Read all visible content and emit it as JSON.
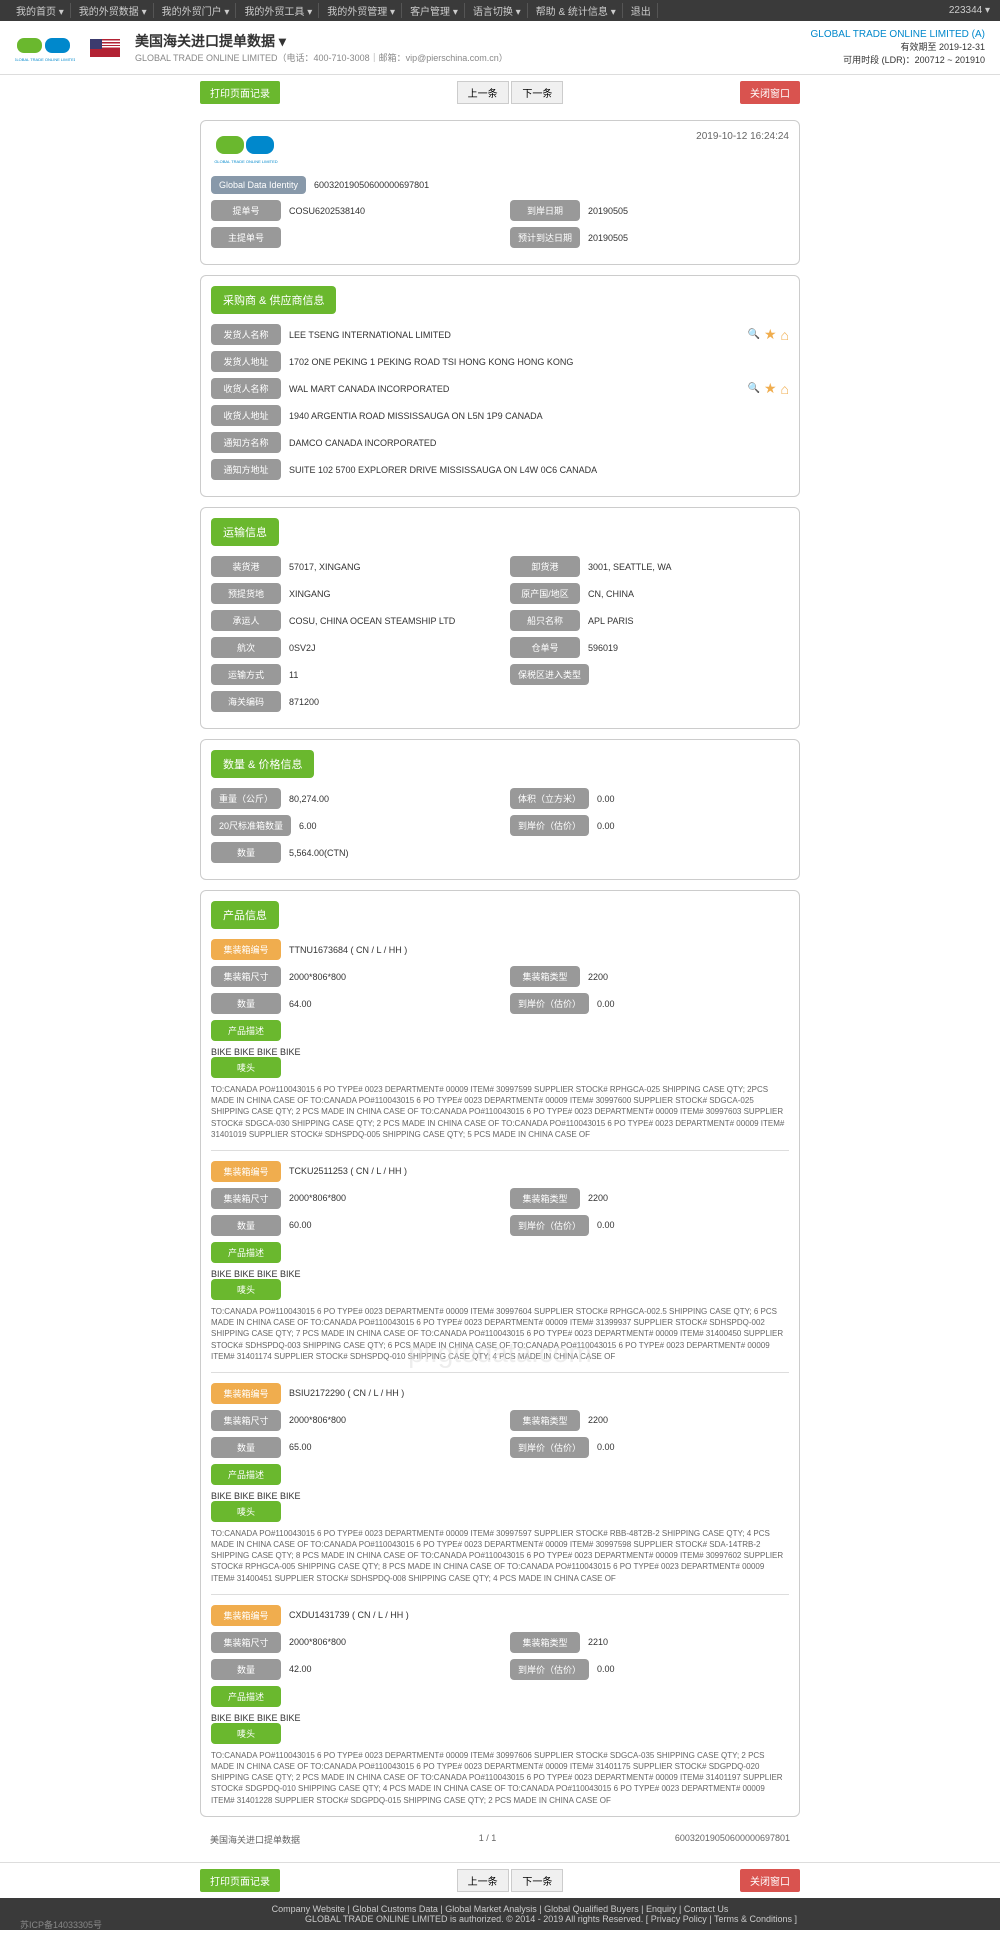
{
  "topbar": {
    "items": [
      "我的首页 ▾",
      "我的外贸数据 ▾",
      "我的外贸门户 ▾",
      "我的外贸工具 ▾",
      "我的外贸管理 ▾",
      "客户管理 ▾",
      "语言切换 ▾",
      "帮助 & 统计信息 ▾",
      "退出"
    ],
    "userid": "223344 ▾"
  },
  "header": {
    "title": "美国海关进口提单数据 ▾",
    "sub": "GLOBAL TRADE ONLINE LIMITED（电话：400-710-3008｜邮箱：vip@pierschina.com.cn）",
    "company": "GLOBAL TRADE ONLINE LIMITED (A)",
    "expire": "有效期至 2019-12-31",
    "usage": "可用时段 (LDR)：200712 ~ 201910"
  },
  "btns": {
    "print": "打印页面记录",
    "prev": "上一条",
    "next": "下一条",
    "close": "关闭窗口"
  },
  "main": {
    "timestamp": "2019-10-12 16:24:24",
    "gdi_label": "Global Data Identity",
    "gdi": "60032019050600000697801",
    "billno_label": "提单号",
    "billno": "COSU6202538140",
    "arrdate_label": "到岸日期",
    "arrdate": "20190505",
    "master_label": "主提单号",
    "master": "",
    "eta_label": "预计到达日期",
    "eta": "20190505"
  },
  "parties": {
    "title": "采购商 & 供应商信息",
    "shipper_name_label": "发货人名称",
    "shipper_name": "LEE TSENG INTERNATIONAL LIMITED",
    "shipper_addr_label": "发货人地址",
    "shipper_addr": "1702 ONE PEKING 1 PEKING ROAD TSI HONG KONG HONG KONG",
    "consignee_name_label": "收货人名称",
    "consignee_name": "WAL MART CANADA INCORPORATED",
    "consignee_addr_label": "收货人地址",
    "consignee_addr": "1940 ARGENTIA ROAD MISSISSAUGA ON L5N 1P9 CANADA",
    "notify_name_label": "通知方名称",
    "notify_name": "DAMCO CANADA INCORPORATED",
    "notify_addr_label": "通知方地址",
    "notify_addr": "SUITE 102 5700 EXPLORER DRIVE MISSISSAUGA ON L4W 0C6 CANADA"
  },
  "transport": {
    "title": "运输信息",
    "loadport_label": "装货港",
    "loadport": "57017, XINGANG",
    "unloadport_label": "卸货港",
    "unloadport": "3001, SEATTLE, WA",
    "predest_label": "预提货地",
    "predest": "XINGANG",
    "origin_label": "原产国/地区",
    "origin": "CN, CHINA",
    "carrier_label": "承运人",
    "carrier": "COSU, CHINA OCEAN STEAMSHIP LTD",
    "vessel_label": "船只名称",
    "vessel": "APL PARIS",
    "voyage_label": "航次",
    "voyage": "0SV2J",
    "manifest_label": "仓单号",
    "manifest": "596019",
    "mode_label": "运输方式",
    "mode": "11",
    "entry_label": "保税区进入类型",
    "entry": "",
    "hs_label": "海关编码",
    "hs": "871200"
  },
  "qty": {
    "title": "数量 & 价格信息",
    "weight_label": "重量（公斤）",
    "weight": "80,274.00",
    "volume_label": "体积（立方米）",
    "volume": "0.00",
    "teu_label": "20尺标准箱数量",
    "teu": "6.00",
    "value_label": "到岸价（估价）",
    "value": "0.00",
    "count_label": "数量",
    "count": "5,564.00(CTN)"
  },
  "products": {
    "title": "产品信息",
    "container_label": "集装箱编号",
    "size_label": "集装箱尺寸",
    "type_label": "集装箱类型",
    "qty_label": "数量",
    "cif_label": "到岸价（估价）",
    "desc_label": "产品描述",
    "mark_label": "唛头",
    "bike": "BIKE BIKE BIKE BIKE",
    "items": [
      {
        "container": "TTNU1673684 ( CN / L / HH )",
        "size": "2000*806*800",
        "type": "2200",
        "qty": "64.00",
        "cif": "0.00",
        "desc": "TO:CANADA PO#110043015 6 PO TYPE# 0023 DEPARTMENT# 00009 ITEM# 30997599 SUPPLIER STOCK# RPHGCA-025 SHIPPING CASE QTY; 2PCS MADE IN CHINA CASE OF TO:CANADA PO#110043015 6 PO TYPE# 0023 DEPARTMENT# 00009 ITEM# 30997600 SUPPLIER STOCK# SDGCA-025 SHIPPING CASE QTY; 2 PCS MADE IN CHINA CASE OF TO:CANADA PO#110043015 6 PO TYPE# 0023 DEPARTMENT# 00009 ITEM# 30997603 SUPPLIER STOCK# SDGCA-030 SHIPPING CASE QTY; 2 PCS MADE IN CHINA CASE OF TO:CANADA PO#110043015 6 PO TYPE# 0023 DEPARTMENT# 00009 ITEM# 31401019 SUPPLIER STOCK# SDHSPDQ-005 SHIPPING CASE QTY; 5 PCS MADE IN CHINA CASE OF"
      },
      {
        "container": "TCKU2511253 ( CN / L / HH )",
        "size": "2000*806*800",
        "type": "2200",
        "qty": "60.00",
        "cif": "0.00",
        "desc": "TO:CANADA PO#110043015 6 PO TYPE# 0023 DEPARTMENT# 00009 ITEM# 30997604 SUPPLIER STOCK# RPHGCA-002.5 SHIPPING CASE QTY; 6 PCS MADE IN CHINA CASE OF TO:CANADA PO#110043015 6 PO TYPE# 0023 DEPARTMENT# 00009 ITEM# 31399937 SUPPLIER STOCK# SDHSPDQ-002 SHIPPING CASE QTY; 7 PCS MADE IN CHINA CASE OF TO:CANADA PO#110043015 6 PO TYPE# 0023 DEPARTMENT# 00009 ITEM# 31400450 SUPPLIER STOCK# SDHSPDQ-003 SHIPPING CASE QTY; 6 PCS MADE IN CHINA CASE OF TO:CANADA PO#110043015 6 PO TYPE# 0023 DEPARTMENT# 00009 ITEM# 31401174 SUPPLIER STOCK# SDHSPDQ-010 SHIPPING CASE QTY; 4 PCS MADE IN CHINA CASE OF"
      },
      {
        "container": "BSIU2172290 ( CN / L / HH )",
        "size": "2000*806*800",
        "type": "2200",
        "qty": "65.00",
        "cif": "0.00",
        "desc": "TO:CANADA PO#110043015 6 PO TYPE# 0023 DEPARTMENT# 00009 ITEM# 30997597 SUPPLIER STOCK# RBB-48T2B-2 SHIPPING CASE QTY; 4 PCS MADE IN CHINA CASE OF TO:CANADA PO#110043015 6 PO TYPE# 0023 DEPARTMENT# 00009 ITEM# 30997598 SUPPLIER STOCK# SDA-14TRB-2 SHIPPING CASE QTY; 8 PCS MADE IN CHINA CASE OF TO:CANADA PO#110043015 6 PO TYPE# 0023 DEPARTMENT# 00009 ITEM# 30997602 SUPPLIER STOCK# RPHGCA-005 SHIPPING CASE QTY; 8 PCS MADE IN CHINA CASE OF TO:CANADA PO#110043015 6 PO TYPE# 0023 DEPARTMENT# 00009 ITEM# 31400451 SUPPLIER STOCK# SDHSPDQ-008 SHIPPING CASE QTY; 4 PCS MADE IN CHINA CASE OF"
      },
      {
        "container": "CXDU1431739 ( CN / L / HH )",
        "size": "2000*806*800",
        "type": "2210",
        "qty": "42.00",
        "cif": "0.00",
        "desc": "TO:CANADA PO#110043015 6 PO TYPE# 0023 DEPARTMENT# 00009 ITEM# 30997606 SUPPLIER STOCK# SDGCA-035 SHIPPING CASE QTY; 2 PCS MADE IN CHINA CASE OF TO:CANADA PO#110043015 6 PO TYPE# 0023 DEPARTMENT# 00009 ITEM# 31401175 SUPPLIER STOCK# SDGPDQ-020 SHIPPING CASE QTY; 2 PCS MADE IN CHINA CASE OF TO:CANADA PO#110043015 6 PO TYPE# 0023 DEPARTMENT# 00009 ITEM# 31401197 SUPPLIER STOCK# SDGPDQ-010 SHIPPING CASE QTY; 4 PCS MADE IN CHINA CASE OF TO:CANADA PO#110043015 6 PO TYPE# 0023 DEPARTMENT# 00009 ITEM# 31401228 SUPPLIER STOCK# SDGPDQ-015 SHIPPING CASE QTY; 2 PCS MADE IN CHINA CASE OF"
      }
    ]
  },
  "footer": {
    "source": "美国海关进口提单数据",
    "page": "1 / 1",
    "id": "60032019050600000697801"
  },
  "bottom": {
    "links": "Company Website | Global Customs Data | Global Market Analysis | Global Qualified Buyers | Enquiry | Contact Us",
    "copyright": "GLOBAL TRADE ONLINE LIMITED is authorized. © 2014 - 2019 All rights Reserved.  [ Privacy Policy | Terms & Conditions ]",
    "icp": "苏ICP备14033305号"
  },
  "watermark": "pl.gtodata.com"
}
